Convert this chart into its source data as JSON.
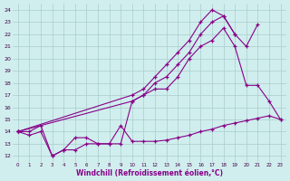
{
  "background_color": "#d0eeee",
  "grid_color": "#aacccc",
  "line_color": "#880088",
  "xlabel": "Windchill (Refroidissement éolien,°C)",
  "x_ticks": [
    0,
    1,
    2,
    3,
    4,
    5,
    6,
    7,
    8,
    9,
    10,
    11,
    12,
    13,
    14,
    15,
    16,
    17,
    18,
    19,
    20,
    21,
    22,
    23
  ],
  "y_ticks": [
    12,
    13,
    14,
    15,
    16,
    17,
    18,
    19,
    20,
    21,
    22,
    23,
    24
  ],
  "xlim": [
    -0.5,
    23.5
  ],
  "ylim": [
    11.5,
    24.5
  ],
  "series": [
    {
      "x": [
        0,
        1,
        2,
        3,
        4,
        5,
        6,
        7,
        8,
        9,
        10,
        11,
        12,
        13,
        14,
        15,
        16,
        17,
        18,
        19,
        20,
        21,
        22,
        23
      ],
      "y": [
        14.0,
        13.7,
        14.0,
        12.0,
        12.5,
        13.5,
        13.5,
        13.0,
        13.0,
        14.5,
        13.2,
        13.2,
        13.2,
        13.3,
        13.5,
        13.7,
        14.0,
        14.2,
        14.5,
        14.7,
        14.9,
        15.1,
        15.3,
        15.0
      ]
    },
    {
      "x": [
        0,
        1,
        2,
        3,
        4,
        5,
        6,
        7,
        8,
        9,
        10,
        11,
        12,
        13,
        14,
        15,
        16,
        17,
        18,
        19,
        20,
        21,
        22,
        23
      ],
      "y": [
        14.0,
        14.0,
        14.5,
        12.0,
        12.5,
        12.5,
        13.0,
        13.0,
        13.0,
        13.0,
        16.5,
        17.0,
        17.5,
        17.5,
        18.5,
        20.0,
        21.0,
        21.5,
        22.5,
        21.0,
        17.8,
        17.8,
        16.5,
        15.0
      ]
    },
    {
      "x": [
        0,
        10,
        11,
        12,
        13,
        14,
        15,
        16,
        17,
        18,
        19,
        20,
        21
      ],
      "y": [
        14.0,
        16.5,
        17.0,
        18.0,
        18.5,
        19.5,
        20.5,
        22.0,
        23.0,
        23.5,
        22.0,
        21.0,
        22.8
      ]
    },
    {
      "x": [
        0,
        10,
        11,
        12,
        13,
        14,
        15,
        16,
        17,
        18,
        19
      ],
      "y": [
        14.0,
        17.0,
        17.5,
        18.5,
        19.5,
        20.5,
        21.5,
        23.0,
        24.0,
        23.5,
        22.0
      ]
    }
  ]
}
